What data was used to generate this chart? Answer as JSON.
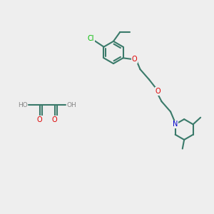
{
  "bg_color": "#eeeeee",
  "bond_color": "#3a7a6a",
  "bond_width": 1.5,
  "atom_colors": {
    "O": "#dd0000",
    "N": "#0000cc",
    "Cl": "#00bb00",
    "H": "#888888",
    "C": "#3a7a6a"
  },
  "font_size": 7.0,
  "ring_r": 0.52,
  "pip_r": 0.48
}
